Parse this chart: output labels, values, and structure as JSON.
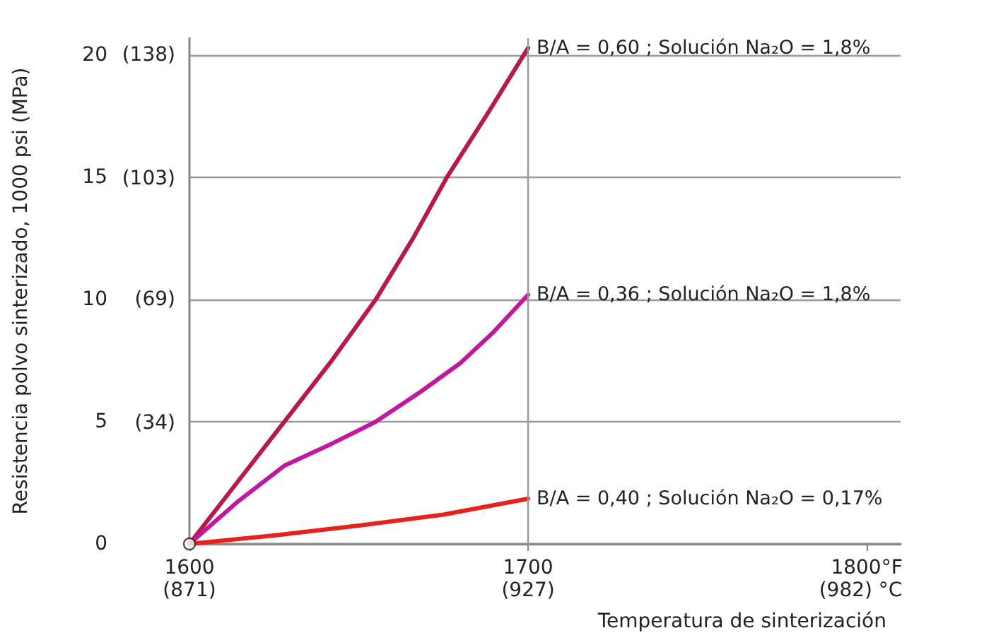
{
  "chart_data": {
    "type": "line",
    "xlabel": "Temperatura de sinterización",
    "ylabel": "Resistencia polvo sinterizado, 1000 psi (MPa)",
    "xlim": [
      1600,
      1810
    ],
    "xticks": [
      1600,
      1700,
      {
        "value": 1800,
        "label": "1800°F"
      }
    ],
    "x2lim": [
      871,
      988.6
    ],
    "x2ticks": [
      {
        "value": 871,
        "label": "(871)"
      },
      {
        "value": 927,
        "label": "(927)"
      },
      {
        "value": 982,
        "label": "(982) °C"
      }
    ],
    "ylim": [
      0,
      20.7
    ],
    "yticks": [
      0,
      5,
      10,
      15,
      20
    ],
    "y2lim": [
      0,
      142.7
    ],
    "y2ticks": [
      {
        "value": 34,
        "label": "(34)"
      },
      {
        "value": 69,
        "label": "(69)"
      },
      {
        "value": 103,
        "label": "(103)"
      },
      {
        "value": 138,
        "label": "(138)"
      }
    ],
    "grid": "y",
    "legend": false,
    "marker": "none",
    "line_style": "solid",
    "ref_lines": [
      {
        "axis": "x",
        "value": 1700,
        "color": "#999999"
      }
    ],
    "series": [
      {
        "name": "B/A = 0,60 ; Solución Na₂O = 1,8%",
        "color": "#b8184c",
        "x": [
          1600,
          1614,
          1628,
          1642,
          1655,
          1666,
          1676,
          1688,
          1700
        ],
        "values": [
          0,
          2.5,
          5,
          7.5,
          10,
          12.5,
          15,
          17.6,
          20.3
        ]
      },
      {
        "name": "B/A = 0,36 ; Solución Na₂O = 1,8%",
        "color": "#c0189f",
        "x": [
          1600,
          1614,
          1628,
          1642,
          1655,
          1668,
          1680,
          1690,
          1700
        ],
        "values": [
          0,
          1.7,
          3.2,
          4.1,
          5,
          6.2,
          7.4,
          8.7,
          10.2
        ]
      },
      {
        "name": "B/A = 0,40 ; Solución Na₂O = 0,17%",
        "color": "#e8221a",
        "x": [
          1600,
          1625,
          1650,
          1675,
          1700
        ],
        "values": [
          0,
          0.35,
          0.75,
          1.2,
          1.85
        ]
      },
      {
        "type": "scatter",
        "marker": "circle",
        "color": "#ffffff",
        "x": [
          1600
        ],
        "values": [
          0
        ]
      }
    ]
  }
}
